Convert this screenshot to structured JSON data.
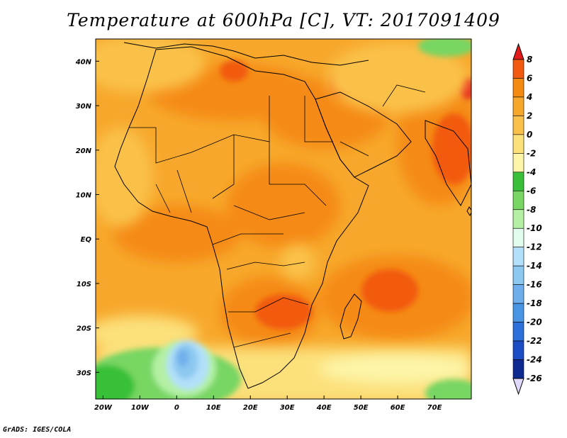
{
  "title": "Temperature at 600hPa [C], VT: 2017091409",
  "credit": "GrADS: IGES/COLA",
  "map": {
    "lat_labels": [
      "40N",
      "30N",
      "20N",
      "10N",
      "EQ",
      "10S",
      "20S",
      "30S"
    ],
    "lat_values": [
      40,
      30,
      20,
      10,
      0,
      -10,
      -20,
      -30
    ],
    "lon_labels": [
      "20W",
      "10W",
      "0",
      "10E",
      "20E",
      "30E",
      "40E",
      "50E",
      "60E",
      "70E"
    ],
    "lon_values": [
      -20,
      -10,
      0,
      10,
      20,
      30,
      40,
      50,
      60,
      70
    ],
    "lon_range": [
      -22,
      80
    ],
    "lat_range": [
      -36,
      45
    ]
  },
  "colorbar": {
    "labels": [
      "8",
      "6",
      "4",
      "2",
      "0",
      "-2",
      "-4",
      "-6",
      "-8",
      "-10",
      "-12",
      "-14",
      "-16",
      "-18",
      "-20",
      "-22",
      "-24",
      "-26"
    ],
    "colors": [
      "#e8281a",
      "#f25a10",
      "#f58a12",
      "#f7a82c",
      "#fac14a",
      "#fce07a",
      "#fdf5a8",
      "#37c038",
      "#78d664",
      "#b4f0a4",
      "#e2fcee",
      "#b2e0fa",
      "#8cc8f0",
      "#6eaeec",
      "#4a94e6",
      "#2c70dc",
      "#1c4cc4",
      "#0e2a90",
      "#e0d8f8"
    ],
    "top_color": "#e21a1a",
    "bottom_color": "#e0d8f8"
  }
}
